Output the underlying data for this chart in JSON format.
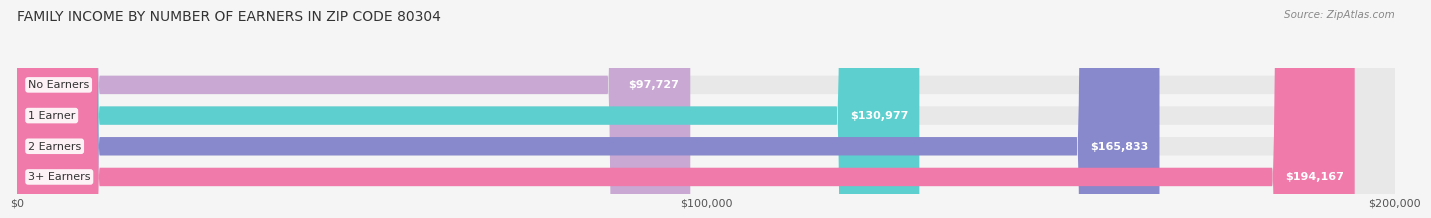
{
  "title": "FAMILY INCOME BY NUMBER OF EARNERS IN ZIP CODE 80304",
  "source": "Source: ZipAtlas.com",
  "categories": [
    "No Earners",
    "1 Earner",
    "2 Earners",
    "3+ Earners"
  ],
  "values": [
    97727,
    130977,
    165833,
    194167
  ],
  "labels": [
    "$97,727",
    "$130,977",
    "$165,833",
    "$194,167"
  ],
  "bar_colors": [
    "#c9a8d4",
    "#5ecfcf",
    "#8888cc",
    "#f07aaa"
  ],
  "bar_bg_color": "#e8e8e8",
  "max_value": 200000,
  "xticks": [
    0,
    100000,
    200000
  ],
  "xticklabels": [
    "$0",
    "$100,000",
    "$200,000"
  ],
  "background_color": "#f5f5f5",
  "title_fontsize": 10,
  "source_fontsize": 7.5,
  "label_fontsize": 8,
  "category_fontsize": 8
}
